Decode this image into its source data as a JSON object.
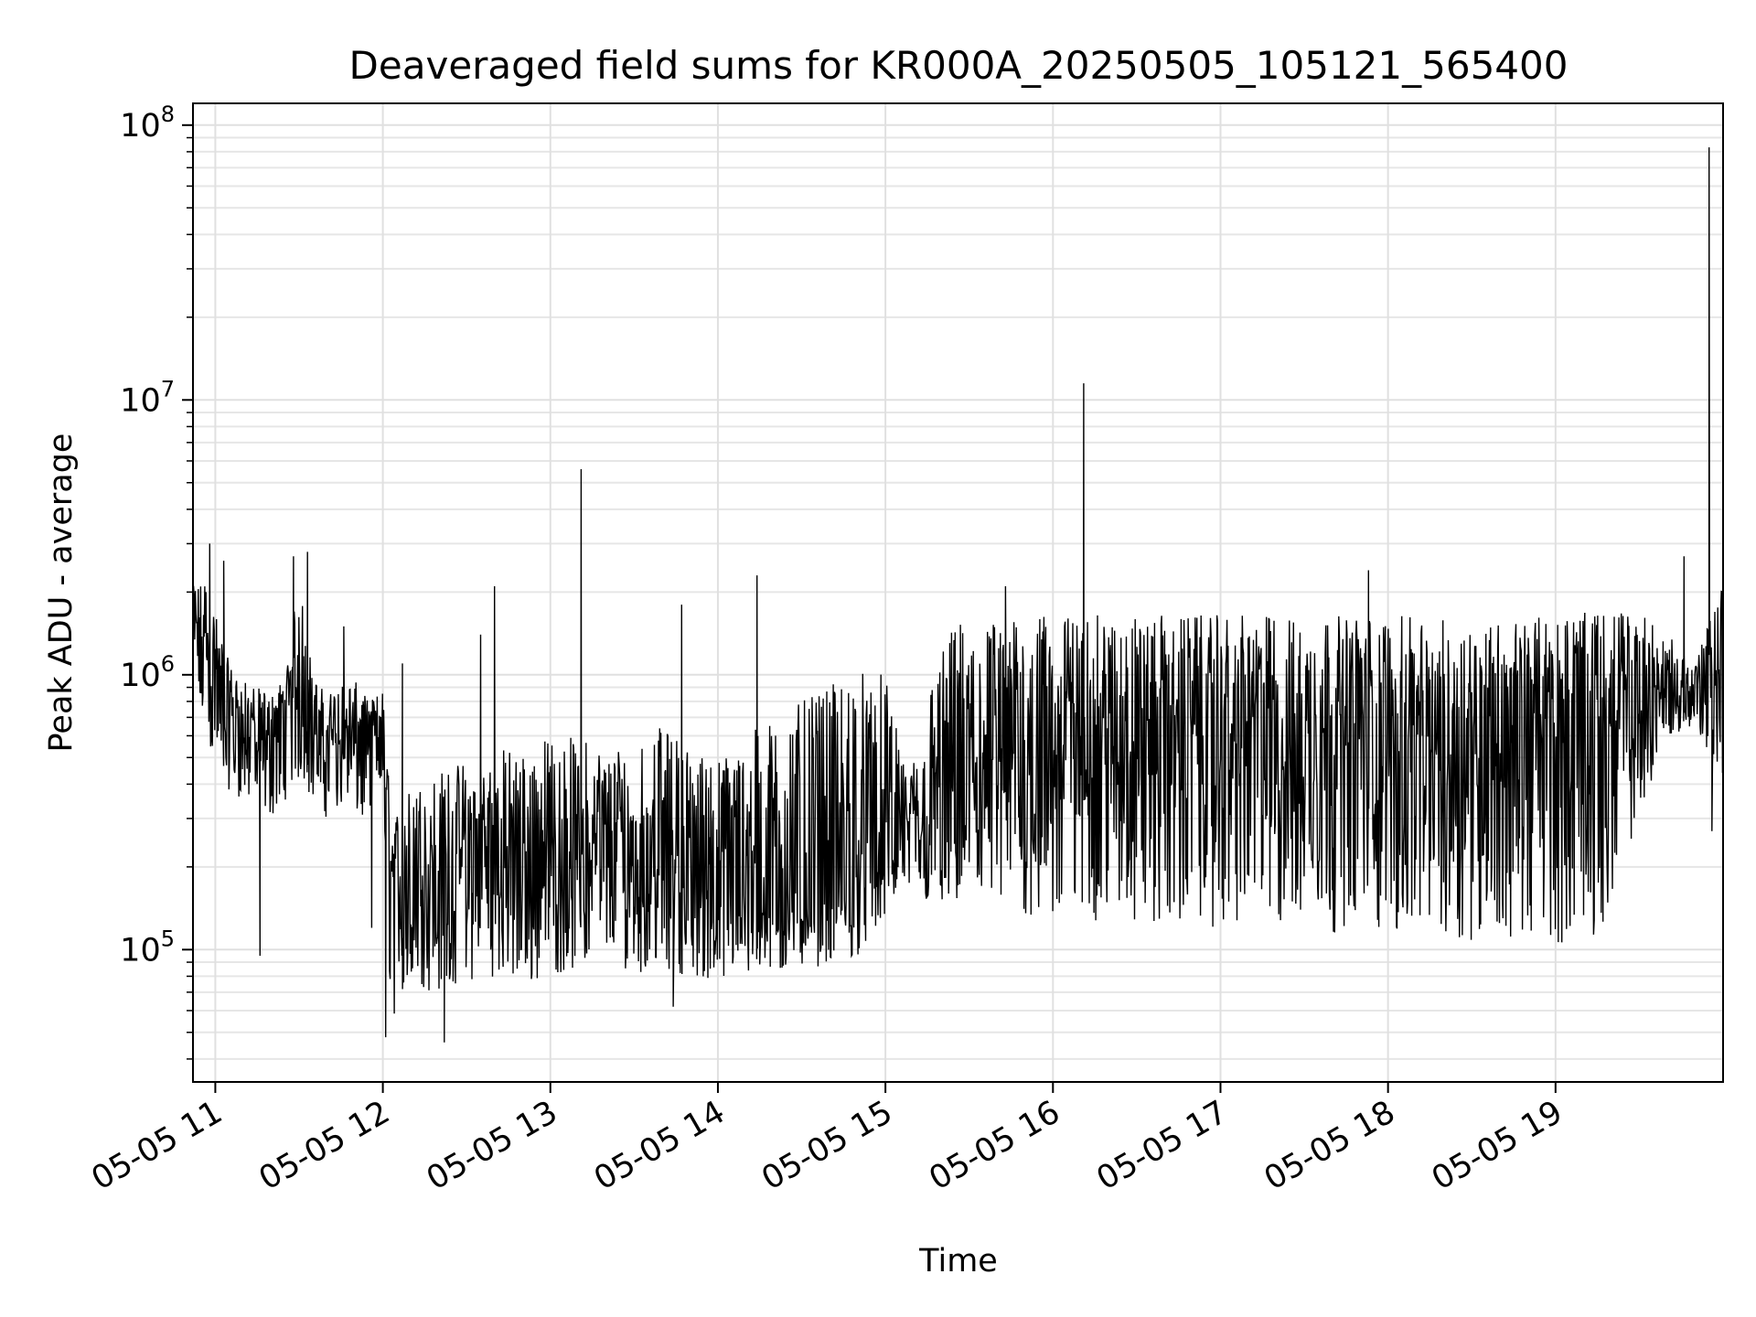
{
  "chart_data": {
    "type": "line",
    "title": "Deaveraged field sums for KR000A_20250505_105121_565400",
    "xlabel": "Time",
    "ylabel": "Peak ADU - average",
    "yscale": "log",
    "ylim": [
      33000,
      120000000
    ],
    "xlim": [
      "2025-05-05 10:52",
      "2025-05-05 20:00"
    ],
    "grid": true,
    "line_color": "#000000",
    "x_ticks": [
      {
        "value": "2025-05-05 11:00",
        "label": "05-05 11"
      },
      {
        "value": "2025-05-05 12:00",
        "label": "05-05 12"
      },
      {
        "value": "2025-05-05 13:00",
        "label": "05-05 13"
      },
      {
        "value": "2025-05-05 14:00",
        "label": "05-05 14"
      },
      {
        "value": "2025-05-05 15:00",
        "label": "05-05 15"
      },
      {
        "value": "2025-05-05 16:00",
        "label": "05-05 16"
      },
      {
        "value": "2025-05-05 17:00",
        "label": "05-05 17"
      },
      {
        "value": "2025-05-05 18:00",
        "label": "05-05 18"
      },
      {
        "value": "2025-05-05 19:00",
        "label": "05-05 19"
      }
    ],
    "y_ticks": [
      {
        "value": 100000,
        "base": "10",
        "exp": "5"
      },
      {
        "value": 1000000,
        "base": "10",
        "exp": "6"
      },
      {
        "value": 10000000,
        "base": "10",
        "exp": "7"
      },
      {
        "value": 100000000,
        "base": "10",
        "exp": "8"
      }
    ],
    "series": [
      {
        "x": [
          "2025-05-05 10:52",
          "2025-05-05 10:56",
          "2025-05-05 11:00",
          "2025-05-05 11:05",
          "2025-05-05 11:10",
          "2025-05-05 11:15",
          "2025-05-05 11:20",
          "2025-05-05 11:25",
          "2025-05-05 11:30",
          "2025-05-05 11:35",
          "2025-05-05 11:40",
          "2025-05-05 11:45",
          "2025-05-05 11:50",
          "2025-05-05 11:55",
          "2025-05-05 12:00",
          "2025-05-05 12:03",
          "2025-05-05 12:10",
          "2025-05-05 12:20",
          "2025-05-05 12:30",
          "2025-05-05 12:40",
          "2025-05-05 12:50",
          "2025-05-05 13:00",
          "2025-05-05 13:10",
          "2025-05-05 13:20",
          "2025-05-05 13:30",
          "2025-05-05 13:40",
          "2025-05-05 13:50",
          "2025-05-05 14:00",
          "2025-05-05 14:10",
          "2025-05-05 14:20",
          "2025-05-05 14:30",
          "2025-05-05 14:40",
          "2025-05-05 14:50",
          "2025-05-05 15:00",
          "2025-05-05 15:08",
          "2025-05-05 15:15",
          "2025-05-05 15:25",
          "2025-05-05 15:35",
          "2025-05-05 15:45",
          "2025-05-05 16:00",
          "2025-05-05 16:15",
          "2025-05-05 16:30",
          "2025-05-05 16:45",
          "2025-05-05 17:00",
          "2025-05-05 17:15",
          "2025-05-05 17:30",
          "2025-05-05 17:45",
          "2025-05-05 18:00",
          "2025-05-05 18:15",
          "2025-05-05 18:30",
          "2025-05-05 18:45",
          "2025-05-05 19:00",
          "2025-05-05 19:15",
          "2025-05-05 19:30",
          "2025-05-05 19:40",
          "2025-05-05 19:50",
          "2025-05-05 20:00"
        ],
        "median": [
          1500000,
          1100000,
          800000,
          650000,
          600000,
          550000,
          520000,
          620000,
          900000,
          600000,
          520000,
          560000,
          550000,
          500000,
          600000,
          150000,
          130000,
          140000,
          160000,
          180000,
          150000,
          170000,
          180000,
          190000,
          170000,
          180000,
          160000,
          150000,
          140000,
          150000,
          145000,
          150000,
          160000,
          200000,
          250000,
          180000,
          300000,
          350000,
          400000,
          450000,
          500000,
          520000,
          480000,
          500000,
          510000,
          500000,
          520000,
          480000,
          460000,
          470000,
          480000,
          500000,
          520000,
          600000,
          750000,
          850000,
          1000000
        ],
        "low": [
          900000,
          600000,
          450000,
          380000,
          350000,
          330000,
          300000,
          350000,
          400000,
          350000,
          300000,
          320000,
          300000,
          280000,
          300000,
          55000,
          70000,
          70000,
          75000,
          80000,
          72000,
          80000,
          85000,
          90000,
          82000,
          85000,
          80000,
          75000,
          78000,
          80000,
          85000,
          88000,
          95000,
          130000,
          160000,
          150000,
          140000,
          130000,
          125000,
          125000,
          125000,
          122000,
          122000,
          120000,
          118000,
          115000,
          115000,
          115000,
          110000,
          108000,
          106000,
          105000,
          110000,
          300000,
          600000,
          650000,
          330000
        ],
        "high": [
          2100000,
          2300000,
          1700000,
          1100000,
          950000,
          900000,
          850000,
          1000000,
          2300000,
          1000000,
          850000,
          950000,
          950000,
          800000,
          900000,
          300000,
          400000,
          450000,
          500000,
          550000,
          550000,
          600000,
          600000,
          550000,
          600000,
          650000,
          550000,
          500000,
          600000,
          700000,
          800000,
          900000,
          1100000,
          1000000,
          400000,
          900000,
          1600000,
          1600000,
          1600000,
          1650000,
          1650000,
          1650000,
          1650000,
          1650000,
          1650000,
          1650000,
          1650000,
          1650000,
          1600000,
          1600000,
          1600000,
          1650000,
          1700000,
          1750000,
          1400000,
          1100000,
          2200000
        ]
      }
    ],
    "spikes": [
      {
        "x": "2025-05-05 10:58",
        "y": 3000000
      },
      {
        "x": "2025-05-05 11:03",
        "y": 2600000
      },
      {
        "x": "2025-05-05 11:16",
        "y": 95000
      },
      {
        "x": "2025-05-05 11:28",
        "y": 2700000
      },
      {
        "x": "2025-05-05 11:33",
        "y": 2800000
      },
      {
        "x": "2025-05-05 11:46",
        "y": 1500000
      },
      {
        "x": "2025-05-05 11:56",
        "y": 120000
      },
      {
        "x": "2025-05-05 12:01",
        "y": 48000
      },
      {
        "x": "2025-05-05 12:07",
        "y": 1100000
      },
      {
        "x": "2025-05-05 12:22",
        "y": 46000
      },
      {
        "x": "2025-05-05 12:35",
        "y": 1400000
      },
      {
        "x": "2025-05-05 12:40",
        "y": 2100000
      },
      {
        "x": "2025-05-05 13:11",
        "y": 5600000
      },
      {
        "x": "2025-05-05 13:47",
        "y": 1800000
      },
      {
        "x": "2025-05-05 13:44",
        "y": 62000
      },
      {
        "x": "2025-05-05 14:14",
        "y": 2300000
      },
      {
        "x": "2025-05-05 15:43",
        "y": 2100000
      },
      {
        "x": "2025-05-05 16:11",
        "y": 11500000
      },
      {
        "x": "2025-05-05 17:53",
        "y": 2400000
      },
      {
        "x": "2025-05-05 19:46",
        "y": 2700000
      },
      {
        "x": "2025-05-05 19:55",
        "y": 83000000
      },
      {
        "x": "2025-05-05 19:56",
        "y": 270000
      }
    ]
  }
}
